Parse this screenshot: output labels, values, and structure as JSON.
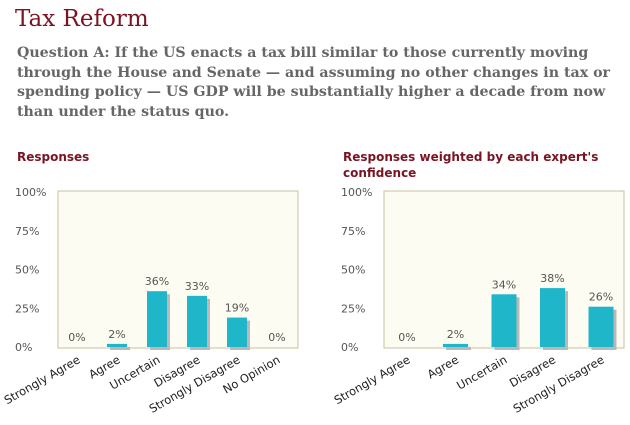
{
  "header": {
    "title": "Tax Reform",
    "question": "Question A: If the US enacts a tax bill similar to those currently moving through the House and Senate — and assuming no other changes in tax or spending policy — US GDP will be substantially higher a decade from now than under the status quo."
  },
  "colors": {
    "accent": "#7a1323",
    "bar": "#1fb6c9",
    "bar_shadow": "#b9b9b9",
    "plot_bg": "#fdfcf2",
    "plot_border": "#c8c2a0",
    "tick_text": "#555555"
  },
  "chart_data": [
    {
      "type": "bar",
      "title": "Responses",
      "categories": [
        "Strongly Agree",
        "Agree",
        "Uncertain",
        "Disagree",
        "Strongly Disagree",
        "No Opinion"
      ],
      "values": [
        0,
        2,
        36,
        33,
        19,
        0
      ],
      "value_labels": [
        "0%",
        "2%",
        "36%",
        "33%",
        "19%",
        "0%"
      ],
      "yticks": [
        "0%",
        "25%",
        "50%",
        "75%",
        "100%"
      ],
      "ylim": [
        0,
        100
      ],
      "xlabel": "",
      "ylabel": ""
    },
    {
      "type": "bar",
      "title": "Responses weighted by each expert's confidence",
      "categories": [
        "Strongly Agree",
        "Agree",
        "Uncertain",
        "Disagree",
        "Strongly Disagree"
      ],
      "values": [
        0,
        2,
        34,
        38,
        26
      ],
      "value_labels": [
        "0%",
        "2%",
        "34%",
        "38%",
        "26%"
      ],
      "yticks": [
        "0%",
        "25%",
        "50%",
        "75%",
        "100%"
      ],
      "ylim": [
        0,
        100
      ],
      "xlabel": "",
      "ylabel": ""
    }
  ]
}
